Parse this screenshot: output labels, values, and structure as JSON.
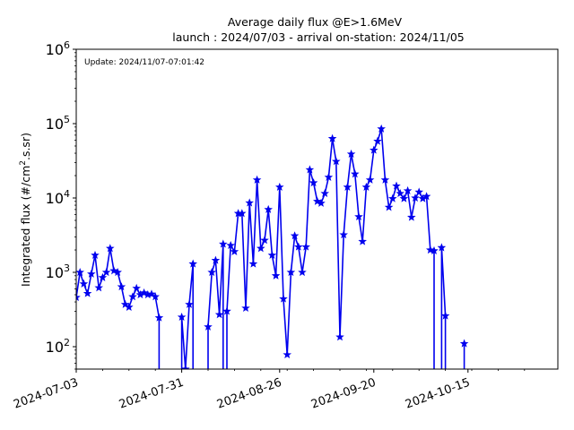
{
  "chart_data": {
    "type": "line",
    "title_line1": "Average daily flux @E>1.6MeV",
    "title_line2": "launch : 2024/07/03 - arrival on-station: 2024/11/05",
    "annotation": "Update: 2024/11/07-07:01:42",
    "xlabel": "",
    "ylabel": "Integrated flux (#/cm².s.sr)",
    "yscale": "log",
    "ylim": [
      50,
      1000000
    ],
    "xlim": [
      "2024-07-03",
      "2024-11-05"
    ],
    "grid": false,
    "x_ticks": [
      "2024-07-03",
      "2024-07-31",
      "2024-08-26",
      "2024-09-20",
      "2024-10-15"
    ],
    "y_ticks": [
      {
        "value": 100,
        "base": "10",
        "exp": "2"
      },
      {
        "value": 1000,
        "base": "10",
        "exp": "3"
      },
      {
        "value": 10000,
        "base": "10",
        "exp": "4"
      },
      {
        "value": 100000,
        "base": "10",
        "exp": "5"
      },
      {
        "value": 1000000,
        "base": "10",
        "exp": "6"
      }
    ],
    "colors": {
      "series": "#0000ee",
      "axes": "#000000",
      "background": "#ffffff"
    },
    "series": [
      {
        "marker": "star",
        "segments": [
          [
            [
              "2024-07-03",
              460
            ],
            [
              "2024-07-04",
              1000
            ],
            [
              "2024-07-05",
              700
            ],
            [
              "2024-07-06",
              520
            ],
            [
              "2024-07-07",
              950
            ],
            [
              "2024-07-08",
              1700
            ],
            [
              "2024-07-09",
              620
            ],
            [
              "2024-07-10",
              850
            ],
            [
              "2024-07-11",
              1000
            ],
            [
              "2024-07-12",
              2100
            ],
            [
              "2024-07-13",
              1050
            ],
            [
              "2024-07-14",
              1000
            ],
            [
              "2024-07-15",
              640
            ],
            [
              "2024-07-16",
              370
            ],
            [
              "2024-07-17",
              340
            ],
            [
              "2024-07-18",
              470
            ],
            [
              "2024-07-19",
              610
            ],
            [
              "2024-07-20",
              500
            ],
            [
              "2024-07-21",
              530
            ],
            [
              "2024-07-22",
              500
            ],
            [
              "2024-07-23",
              510
            ],
            [
              "2024-07-24",
              470
            ],
            [
              "2024-07-25",
              245
            ],
            [
              "2024-07-25",
              40
            ]
          ],
          [
            [
              "2024-07-31",
              40
            ],
            [
              "2024-07-31",
              250
            ],
            [
              "2024-08-01",
              50
            ],
            [
              "2024-08-02",
              370
            ],
            [
              "2024-08-03",
              1300
            ],
            [
              "2024-08-03",
              40
            ]
          ],
          [
            [
              "2024-08-07",
              40
            ],
            [
              "2024-08-07",
              185
            ],
            [
              "2024-08-08",
              1000
            ],
            [
              "2024-08-09",
              1450
            ],
            [
              "2024-08-10",
              270
            ],
            [
              "2024-08-11",
              2400
            ],
            [
              "2024-08-11",
              40
            ]
          ],
          [
            [
              "2024-08-12",
              40
            ],
            [
              "2024-08-12",
              300
            ],
            [
              "2024-08-13",
              2300
            ],
            [
              "2024-08-14",
              1900
            ],
            [
              "2024-08-15",
              6200
            ],
            [
              "2024-08-16",
              6200
            ],
            [
              "2024-08-17",
              330
            ],
            [
              "2024-08-18",
              8600
            ],
            [
              "2024-08-19",
              1300
            ],
            [
              "2024-08-20",
              17500
            ],
            [
              "2024-08-21",
              2100
            ],
            [
              "2024-08-22",
              2700
            ],
            [
              "2024-08-23",
              7000
            ],
            [
              "2024-08-24",
              1700
            ],
            [
              "2024-08-25",
              900
            ],
            [
              "2024-08-26",
              14000
            ],
            [
              "2024-08-27",
              440
            ],
            [
              "2024-08-28",
              78
            ],
            [
              "2024-08-29",
              1000
            ],
            [
              "2024-08-30",
              3100
            ],
            [
              "2024-08-31",
              2200
            ],
            [
              "2024-09-01",
              1000
            ],
            [
              "2024-09-02",
              2200
            ],
            [
              "2024-09-03",
              24000
            ],
            [
              "2024-09-04",
              16000
            ],
            [
              "2024-09-05",
              9000
            ],
            [
              "2024-09-06",
              8500
            ],
            [
              "2024-09-07",
              11500
            ],
            [
              "2024-09-08",
              19000
            ],
            [
              "2024-09-09",
              63000
            ],
            [
              "2024-09-10",
              31000
            ],
            [
              "2024-09-11",
              135
            ],
            [
              "2024-09-12",
              3200
            ],
            [
              "2024-09-13",
              14000
            ],
            [
              "2024-09-14",
              39000
            ],
            [
              "2024-09-15",
              21000
            ],
            [
              "2024-09-16",
              5600
            ],
            [
              "2024-09-17",
              2600
            ],
            [
              "2024-09-18",
              14000
            ],
            [
              "2024-09-19",
              17500
            ],
            [
              "2024-09-20",
              44000
            ],
            [
              "2024-09-21",
              58000
            ],
            [
              "2024-09-22",
              85000
            ],
            [
              "2024-09-23",
              17500
            ],
            [
              "2024-09-24",
              7500
            ],
            [
              "2024-09-25",
              9800
            ],
            [
              "2024-09-26",
              14500
            ],
            [
              "2024-09-27",
              11500
            ],
            [
              "2024-09-28",
              9800
            ],
            [
              "2024-09-29",
              12500
            ],
            [
              "2024-09-30",
              5500
            ],
            [
              "2024-10-01",
              10000
            ],
            [
              "2024-10-02",
              12000
            ],
            [
              "2024-10-03",
              9800
            ],
            [
              "2024-10-04",
              10500
            ],
            [
              "2024-10-05",
              2000
            ],
            [
              "2024-10-06",
              1950
            ],
            [
              "2024-10-06",
              40
            ]
          ],
          [
            [
              "2024-10-08",
              40
            ],
            [
              "2024-10-08",
              2150
            ],
            [
              "2024-10-09",
              260
            ],
            [
              "2024-10-09",
              40
            ]
          ],
          [
            [
              "2024-10-14",
              40
            ],
            [
              "2024-10-14",
              110
            ]
          ]
        ]
      }
    ]
  }
}
